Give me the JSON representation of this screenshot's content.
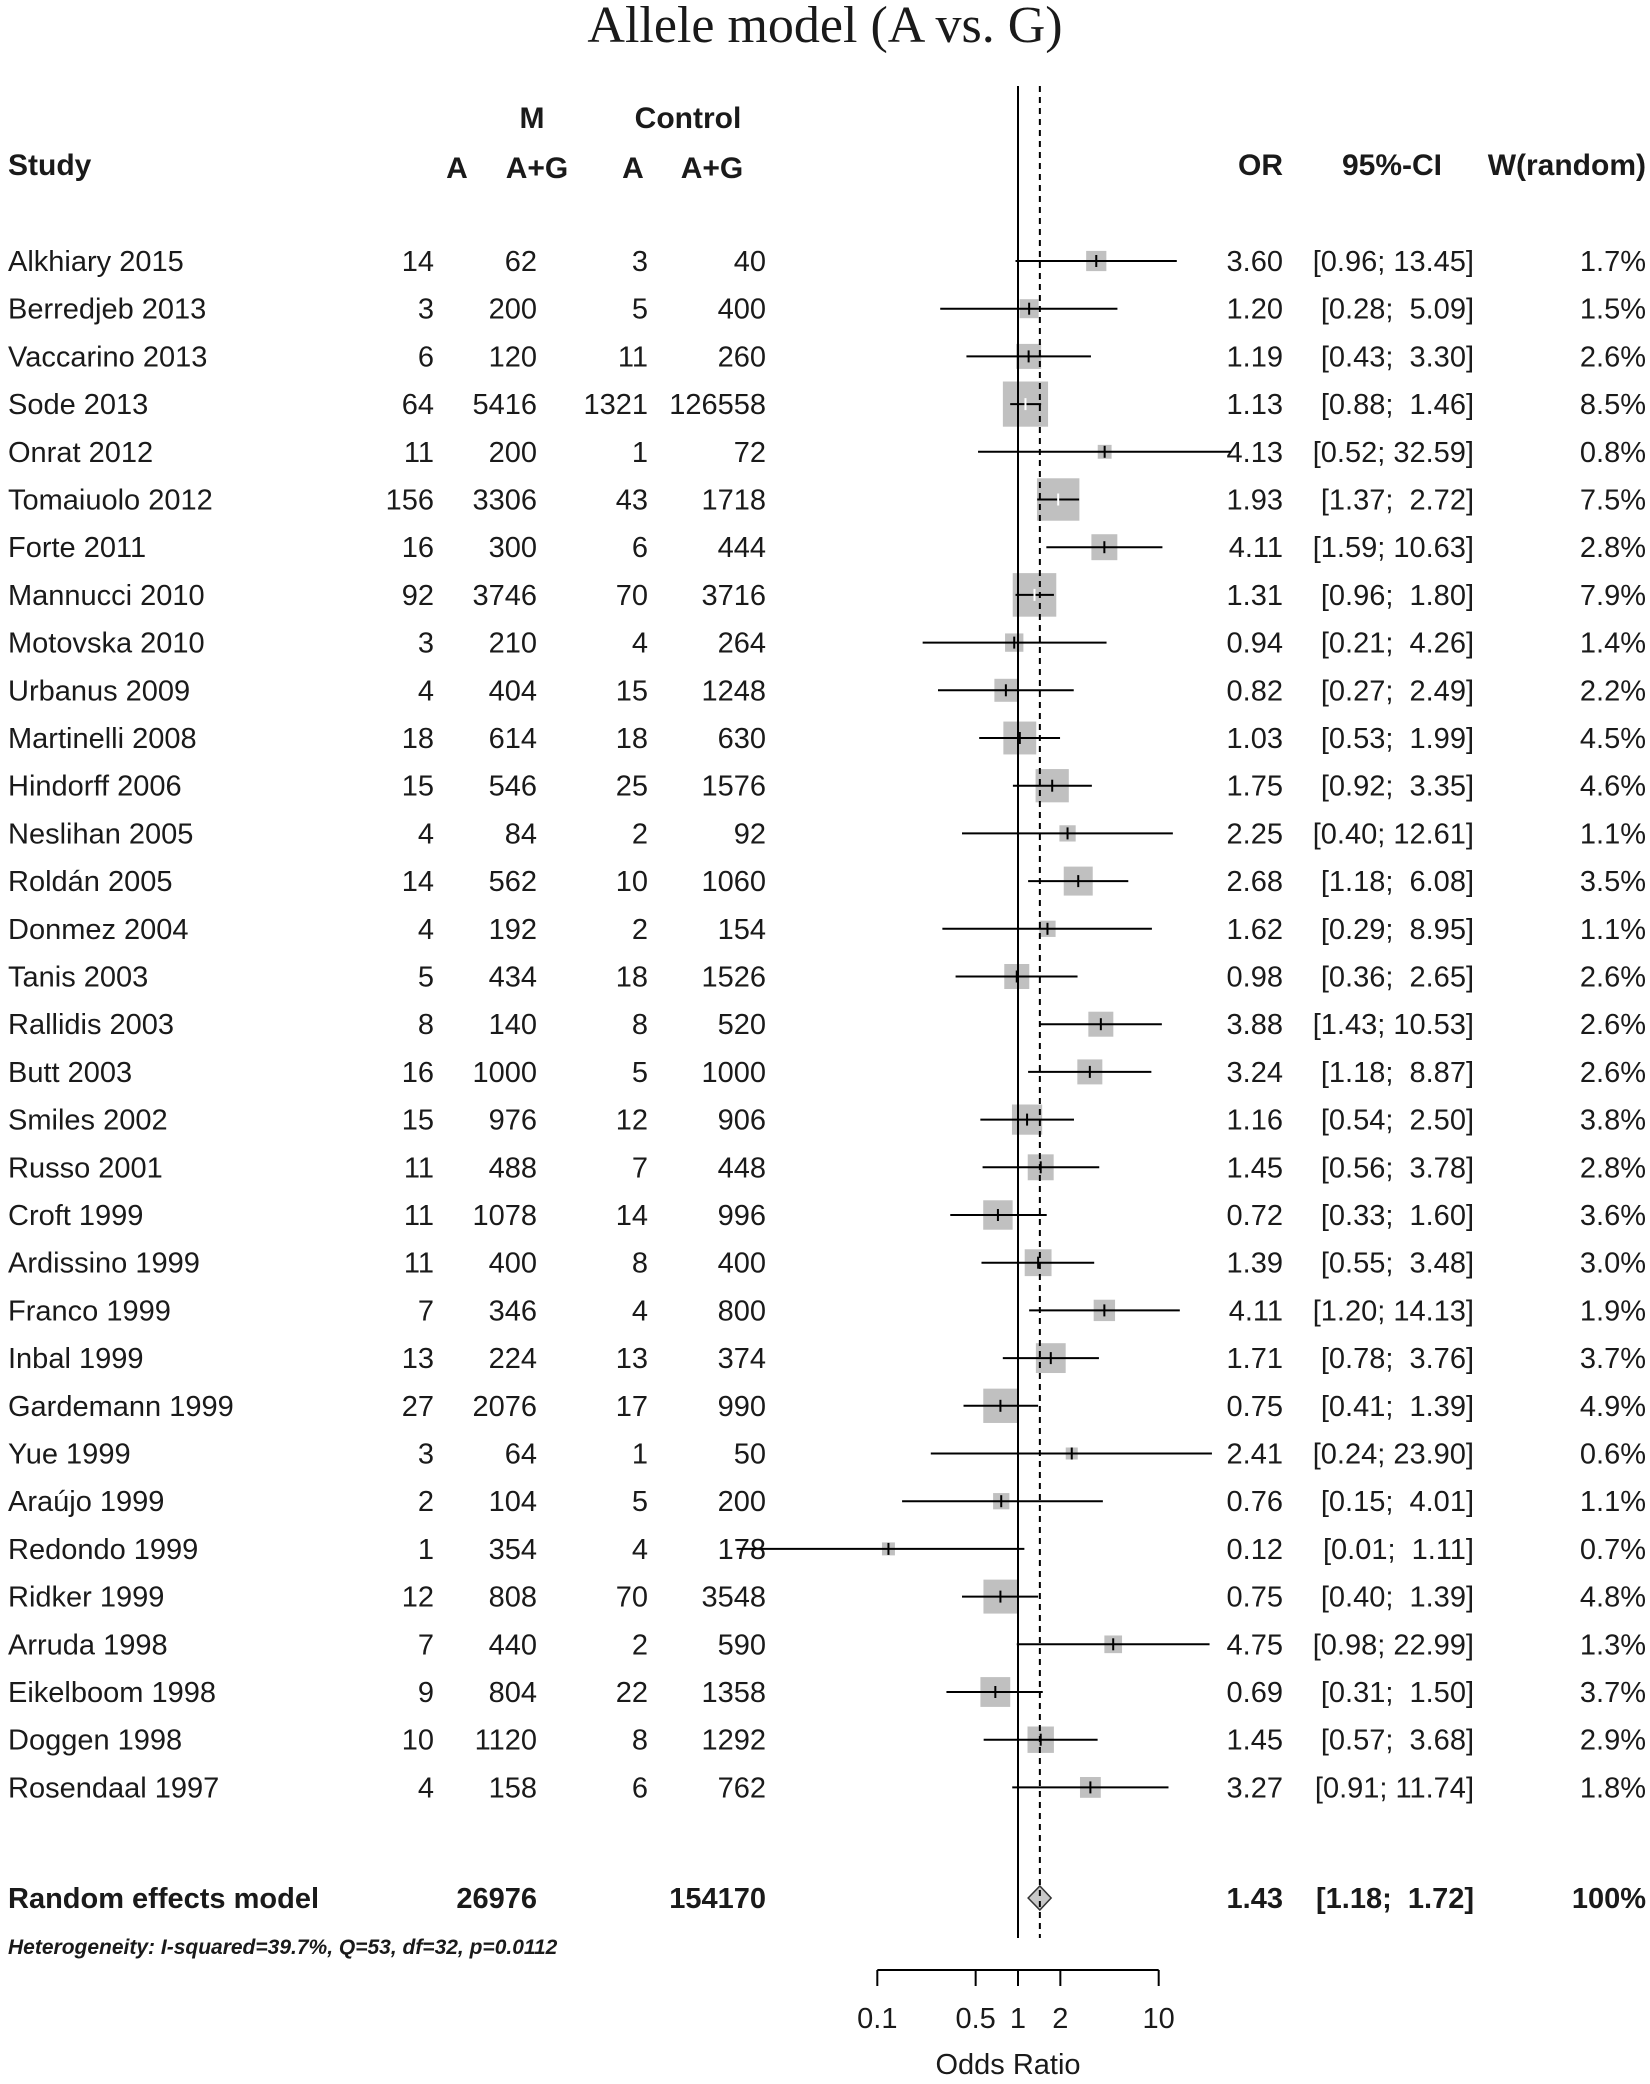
{
  "chart_data": {
    "type": "forest",
    "title": "Allele model (A vs. G)",
    "headers": {
      "study": "Study",
      "group_m": "M",
      "group_control": "Control",
      "events": "A",
      "total": "A+G",
      "or": "OR",
      "ci": "95%-CI",
      "weight": "W(random)"
    },
    "studies": [
      {
        "name": "Alkhiary 2015",
        "m_a": "14",
        "m_total": "62",
        "c_a": "3",
        "c_total": "40",
        "or": 3.6,
        "lo": 0.96,
        "hi": 13.45,
        "or_text": "3.60",
        "ci_text": "[0.96; 13.45]",
        "w_text": "1.7%",
        "w": 1.7
      },
      {
        "name": "Berredjeb 2013",
        "m_a": "3",
        "m_total": "200",
        "c_a": "5",
        "c_total": "400",
        "or": 1.2,
        "lo": 0.28,
        "hi": 5.09,
        "or_text": "1.20",
        "ci_text": "[0.28;  5.09]",
        "w_text": "1.5%",
        "w": 1.5
      },
      {
        "name": "Vaccarino 2013",
        "m_a": "6",
        "m_total": "120",
        "c_a": "11",
        "c_total": "260",
        "or": 1.19,
        "lo": 0.43,
        "hi": 3.3,
        "or_text": "1.19",
        "ci_text": "[0.43;  3.30]",
        "w_text": "2.6%",
        "w": 2.6
      },
      {
        "name": "Sode 2013",
        "m_a": "64",
        "m_total": "5416",
        "c_a": "1321",
        "c_total": "126558",
        "or": 1.13,
        "lo": 0.88,
        "hi": 1.46,
        "or_text": "1.13",
        "ci_text": "[0.88;  1.46]",
        "w_text": "8.5%",
        "w": 8.5
      },
      {
        "name": "Onrat 2012",
        "m_a": "11",
        "m_total": "200",
        "c_a": "1",
        "c_total": "72",
        "or": 4.13,
        "lo": 0.52,
        "hi": 32.59,
        "or_text": "4.13",
        "ci_text": "[0.52; 32.59]",
        "w_text": "0.8%",
        "w": 0.8
      },
      {
        "name": "Tomaiuolo 2012",
        "m_a": "156",
        "m_total": "3306",
        "c_a": "43",
        "c_total": "1718",
        "or": 1.93,
        "lo": 1.37,
        "hi": 2.72,
        "or_text": "1.93",
        "ci_text": "[1.37;  2.72]",
        "w_text": "7.5%",
        "w": 7.5
      },
      {
        "name": "Forte 2011",
        "m_a": "16",
        "m_total": "300",
        "c_a": "6",
        "c_total": "444",
        "or": 4.11,
        "lo": 1.59,
        "hi": 10.63,
        "or_text": "4.11",
        "ci_text": "[1.59; 10.63]",
        "w_text": "2.8%",
        "w": 2.8
      },
      {
        "name": "Mannucci 2010",
        "m_a": "92",
        "m_total": "3746",
        "c_a": "70",
        "c_total": "3716",
        "or": 1.31,
        "lo": 0.96,
        "hi": 1.8,
        "or_text": "1.31",
        "ci_text": "[0.96;  1.80]",
        "w_text": "7.9%",
        "w": 7.9
      },
      {
        "name": "Motovska 2010",
        "m_a": "3",
        "m_total": "210",
        "c_a": "4",
        "c_total": "264",
        "or": 0.94,
        "lo": 0.21,
        "hi": 4.26,
        "or_text": "0.94",
        "ci_text": "[0.21;  4.26]",
        "w_text": "1.4%",
        "w": 1.4
      },
      {
        "name": "Urbanus 2009",
        "m_a": "4",
        "m_total": "404",
        "c_a": "15",
        "c_total": "1248",
        "or": 0.82,
        "lo": 0.27,
        "hi": 2.49,
        "or_text": "0.82",
        "ci_text": "[0.27;  2.49]",
        "w_text": "2.2%",
        "w": 2.2
      },
      {
        "name": "Martinelli 2008",
        "m_a": "18",
        "m_total": "614",
        "c_a": "18",
        "c_total": "630",
        "or": 1.03,
        "lo": 0.53,
        "hi": 1.99,
        "or_text": "1.03",
        "ci_text": "[0.53;  1.99]",
        "w_text": "4.5%",
        "w": 4.5
      },
      {
        "name": "Hindorff 2006",
        "m_a": "15",
        "m_total": "546",
        "c_a": "25",
        "c_total": "1576",
        "or": 1.75,
        "lo": 0.92,
        "hi": 3.35,
        "or_text": "1.75",
        "ci_text": "[0.92;  3.35]",
        "w_text": "4.6%",
        "w": 4.6
      },
      {
        "name": "Neslihan 2005",
        "m_a": "4",
        "m_total": "84",
        "c_a": "2",
        "c_total": "92",
        "or": 2.25,
        "lo": 0.4,
        "hi": 12.61,
        "or_text": "2.25",
        "ci_text": "[0.40; 12.61]",
        "w_text": "1.1%",
        "w": 1.1
      },
      {
        "name": "Roldán 2005",
        "m_a": "14",
        "m_total": "562",
        "c_a": "10",
        "c_total": "1060",
        "or": 2.68,
        "lo": 1.18,
        "hi": 6.08,
        "or_text": "2.68",
        "ci_text": "[1.18;  6.08]",
        "w_text": "3.5%",
        "w": 3.5
      },
      {
        "name": "Donmez 2004",
        "m_a": "4",
        "m_total": "192",
        "c_a": "2",
        "c_total": "154",
        "or": 1.62,
        "lo": 0.29,
        "hi": 8.95,
        "or_text": "1.62",
        "ci_text": "[0.29;  8.95]",
        "w_text": "1.1%",
        "w": 1.1
      },
      {
        "name": "Tanis 2003",
        "m_a": "5",
        "m_total": "434",
        "c_a": "18",
        "c_total": "1526",
        "or": 0.98,
        "lo": 0.36,
        "hi": 2.65,
        "or_text": "0.98",
        "ci_text": "[0.36;  2.65]",
        "w_text": "2.6%",
        "w": 2.6
      },
      {
        "name": "Rallidis 2003",
        "m_a": "8",
        "m_total": "140",
        "c_a": "8",
        "c_total": "520",
        "or": 3.88,
        "lo": 1.43,
        "hi": 10.53,
        "or_text": "3.88",
        "ci_text": "[1.43; 10.53]",
        "w_text": "2.6%",
        "w": 2.6
      },
      {
        "name": "Butt 2003",
        "m_a": "16",
        "m_total": "1000",
        "c_a": "5",
        "c_total": "1000",
        "or": 3.24,
        "lo": 1.18,
        "hi": 8.87,
        "or_text": "3.24",
        "ci_text": "[1.18;  8.87]",
        "w_text": "2.6%",
        "w": 2.6
      },
      {
        "name": "Smiles 2002",
        "m_a": "15",
        "m_total": "976",
        "c_a": "12",
        "c_total": "906",
        "or": 1.16,
        "lo": 0.54,
        "hi": 2.5,
        "or_text": "1.16",
        "ci_text": "[0.54;  2.50]",
        "w_text": "3.8%",
        "w": 3.8
      },
      {
        "name": "Russo 2001",
        "m_a": "11",
        "m_total": "488",
        "c_a": "7",
        "c_total": "448",
        "or": 1.45,
        "lo": 0.56,
        "hi": 3.78,
        "or_text": "1.45",
        "ci_text": "[0.56;  3.78]",
        "w_text": "2.8%",
        "w": 2.8
      },
      {
        "name": "Croft 1999",
        "m_a": "11",
        "m_total": "1078",
        "c_a": "14",
        "c_total": "996",
        "or": 0.72,
        "lo": 0.33,
        "hi": 1.6,
        "or_text": "0.72",
        "ci_text": "[0.33;  1.60]",
        "w_text": "3.6%",
        "w": 3.6
      },
      {
        "name": "Ardissino 1999",
        "m_a": "11",
        "m_total": "400",
        "c_a": "8",
        "c_total": "400",
        "or": 1.39,
        "lo": 0.55,
        "hi": 3.48,
        "or_text": "1.39",
        "ci_text": "[0.55;  3.48]",
        "w_text": "3.0%",
        "w": 3.0
      },
      {
        "name": "Franco 1999",
        "m_a": "7",
        "m_total": "346",
        "c_a": "4",
        "c_total": "800",
        "or": 4.11,
        "lo": 1.2,
        "hi": 14.13,
        "or_text": "4.11",
        "ci_text": "[1.20; 14.13]",
        "w_text": "1.9%",
        "w": 1.9
      },
      {
        "name": "Inbal 1999",
        "m_a": "13",
        "m_total": "224",
        "c_a": "13",
        "c_total": "374",
        "or": 1.71,
        "lo": 0.78,
        "hi": 3.76,
        "or_text": "1.71",
        "ci_text": "[0.78;  3.76]",
        "w_text": "3.7%",
        "w": 3.7
      },
      {
        "name": "Gardemann 1999",
        "m_a": "27",
        "m_total": "2076",
        "c_a": "17",
        "c_total": "990",
        "or": 0.75,
        "lo": 0.41,
        "hi": 1.39,
        "or_text": "0.75",
        "ci_text": "[0.41;  1.39]",
        "w_text": "4.9%",
        "w": 4.9
      },
      {
        "name": "Yue 1999",
        "m_a": "3",
        "m_total": "64",
        "c_a": "1",
        "c_total": "50",
        "or": 2.41,
        "lo": 0.24,
        "hi": 23.9,
        "or_text": "2.41",
        "ci_text": "[0.24; 23.90]",
        "w_text": "0.6%",
        "w": 0.6
      },
      {
        "name": "Araújo 1999",
        "m_a": "2",
        "m_total": "104",
        "c_a": "5",
        "c_total": "200",
        "or": 0.76,
        "lo": 0.15,
        "hi": 4.01,
        "or_text": "0.76",
        "ci_text": "[0.15;  4.01]",
        "w_text": "1.1%",
        "w": 1.1
      },
      {
        "name": "Redondo 1999",
        "m_a": "1",
        "m_total": "354",
        "c_a": "4",
        "c_total": "178",
        "or": 0.12,
        "lo": 0.01,
        "hi": 1.11,
        "or_text": "0.12",
        "ci_text": "[0.01;  1.11]",
        "w_text": "0.7%",
        "w": 0.7
      },
      {
        "name": "Ridker 1999",
        "m_a": "12",
        "m_total": "808",
        "c_a": "70",
        "c_total": "3548",
        "or": 0.75,
        "lo": 0.4,
        "hi": 1.39,
        "or_text": "0.75",
        "ci_text": "[0.40;  1.39]",
        "w_text": "4.8%",
        "w": 4.8
      },
      {
        "name": "Arruda 1998",
        "m_a": "7",
        "m_total": "440",
        "c_a": "2",
        "c_total": "590",
        "or": 4.75,
        "lo": 0.98,
        "hi": 22.99,
        "or_text": "4.75",
        "ci_text": "[0.98; 22.99]",
        "w_text": "1.3%",
        "w": 1.3
      },
      {
        "name": "Eikelboom 1998",
        "m_a": "9",
        "m_total": "804",
        "c_a": "22",
        "c_total": "1358",
        "or": 0.69,
        "lo": 0.31,
        "hi": 1.5,
        "or_text": "0.69",
        "ci_text": "[0.31;  1.50]",
        "w_text": "3.7%",
        "w": 3.7
      },
      {
        "name": "Doggen 1998",
        "m_a": "10",
        "m_total": "1120",
        "c_a": "8",
        "c_total": "1292",
        "or": 1.45,
        "lo": 0.57,
        "hi": 3.68,
        "or_text": "1.45",
        "ci_text": "[0.57;  3.68]",
        "w_text": "2.9%",
        "w": 2.9
      },
      {
        "name": "Rosendaal 1997",
        "m_a": "4",
        "m_total": "158",
        "c_a": "6",
        "c_total": "762",
        "or": 3.27,
        "lo": 0.91,
        "hi": 11.74,
        "or_text": "3.27",
        "ci_text": "[0.91; 11.74]",
        "w_text": "1.8%",
        "w": 1.8
      }
    ],
    "summary": {
      "label": "Random effects model",
      "m_total": "26976",
      "c_total": "154170",
      "or": 1.43,
      "lo": 1.18,
      "hi": 1.72,
      "or_text": "1.43",
      "ci_text": "[1.18;  1.72]",
      "w_text": "100%"
    },
    "heterogeneity": "Heterogeneity: I-squared=39.7%, Q=53, df=32, p=0.0112",
    "x_axis": {
      "label": "Odds Ratio",
      "scale": "log",
      "xlim": [
        0.1,
        10
      ],
      "ticks": [
        0.1,
        0.5,
        1,
        2,
        10
      ],
      "tick_labels": [
        "0.1",
        "0.5",
        "1",
        "2",
        "10"
      ],
      "null_value": 1,
      "reference_line": 1.43
    }
  }
}
